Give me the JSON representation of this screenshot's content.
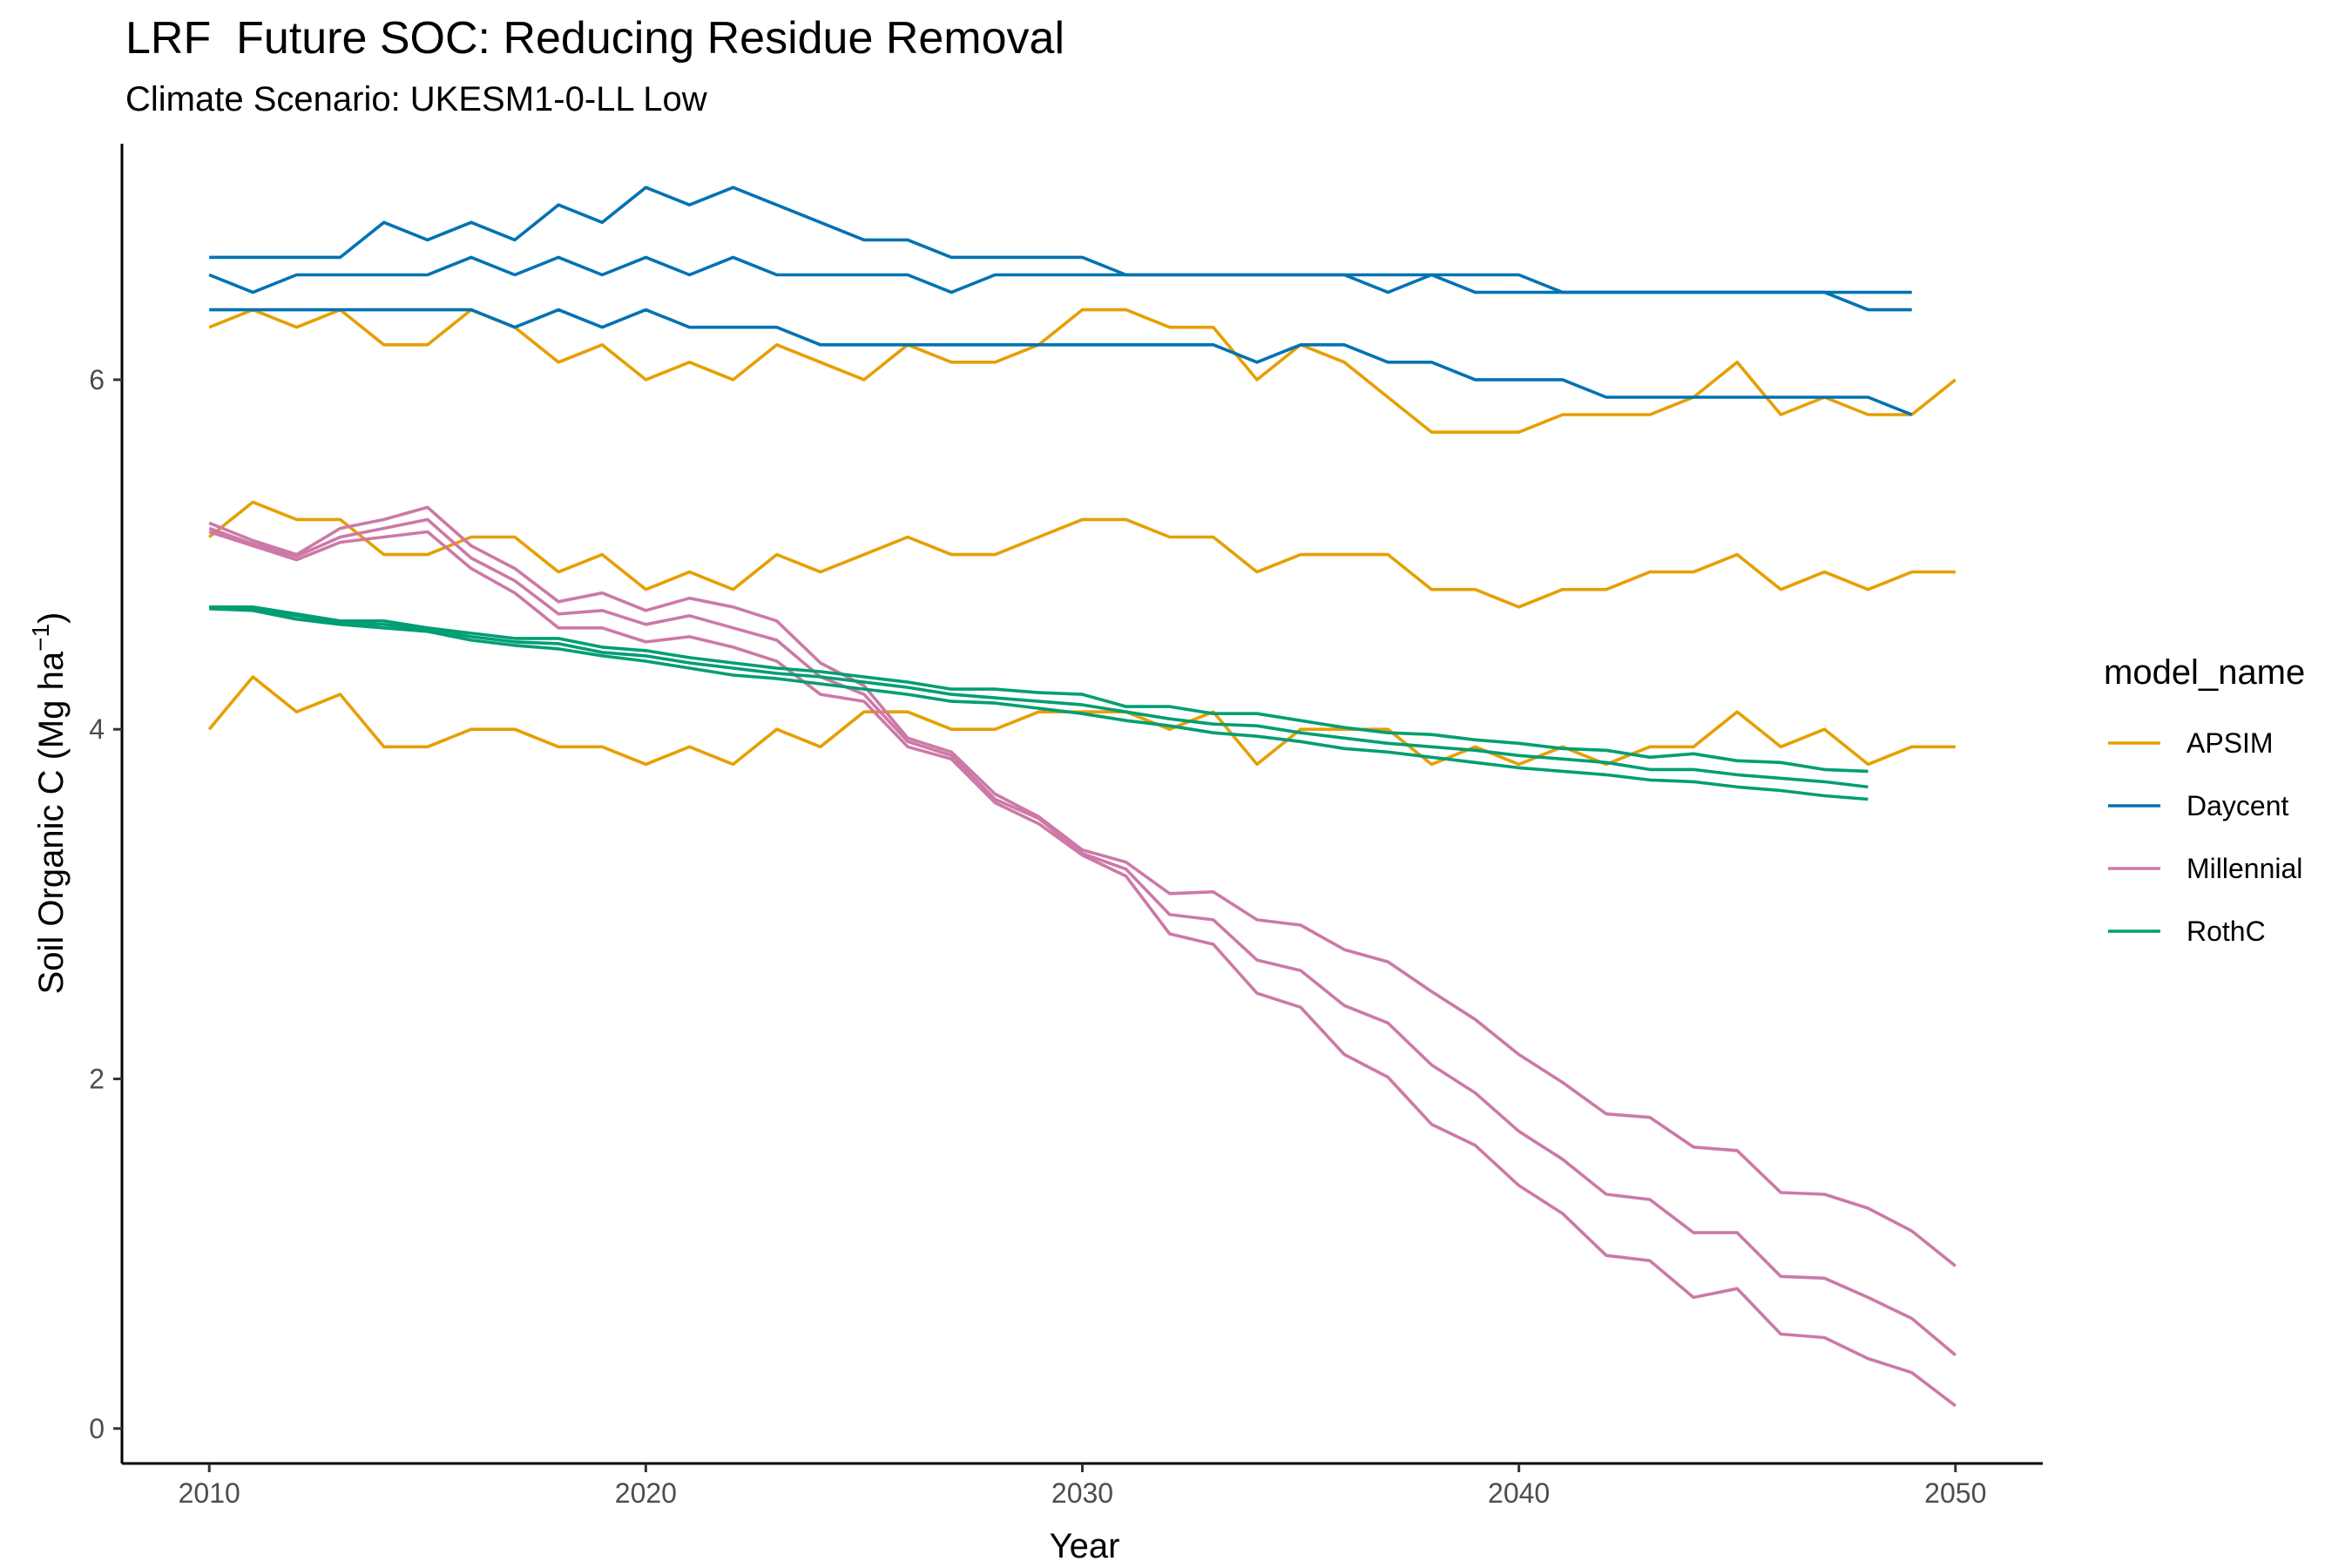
{
  "header": {
    "title": "LRF  Future SOC: Reducing Residue Removal",
    "subtitle": "Climate Scenario: UKESM1-0-LL Low"
  },
  "chart_data": {
    "type": "line",
    "title": "LRF  Future SOC: Reducing Residue Removal",
    "subtitle": "Climate Scenario: UKESM1-0-LL Low",
    "xlabel": "Year",
    "ylabel": "Soil Organic C (Mg ha⁻¹)",
    "ylabel_parts": {
      "main": "Soil Organic C (Mg ha",
      "sup": "−1",
      "close": ")"
    },
    "xlim": [
      2008,
      2052
    ],
    "ylim": [
      -0.2,
      7.35
    ],
    "x_ticks": [
      2010,
      2020,
      2030,
      2040,
      2050
    ],
    "y_ticks": [
      0,
      2,
      4,
      6
    ],
    "grid": false,
    "legend": {
      "title": "model_name",
      "position": "right",
      "entries": [
        {
          "name": "APSIM",
          "color": "#E69F00"
        },
        {
          "name": "Daycent",
          "color": "#0072B2"
        },
        {
          "name": "Millennial",
          "color": "#CC79A7"
        },
        {
          "name": "RothC",
          "color": "#009E73"
        }
      ]
    },
    "x_start": 2010,
    "series": [
      {
        "model": "APSIM",
        "color": "#E69F00",
        "values": [
          6.3,
          6.4,
          6.3,
          6.4,
          6.2,
          6.2,
          6.4,
          6.3,
          6.1,
          6.2,
          6.0,
          6.1,
          6.0,
          6.2,
          6.1,
          6.0,
          6.2,
          6.1,
          6.1,
          6.2,
          6.4,
          6.4,
          6.3,
          6.3,
          6.0,
          6.2,
          6.1,
          5.9,
          5.7,
          5.7,
          5.7,
          5.8,
          5.8,
          5.8,
          5.9,
          6.1,
          5.8,
          5.9,
          5.8,
          5.8,
          6.0
        ]
      },
      {
        "model": "APSIM",
        "color": "#E69F00",
        "values": [
          5.1,
          5.3,
          5.2,
          5.2,
          5.0,
          5.0,
          5.1,
          5.1,
          4.9,
          5.0,
          4.8,
          4.9,
          4.8,
          5.0,
          4.9,
          5.0,
          5.1,
          5.0,
          5.0,
          5.1,
          5.2,
          5.2,
          5.1,
          5.1,
          4.9,
          5.0,
          5.0,
          5.0,
          4.8,
          4.8,
          4.7,
          4.8,
          4.8,
          4.9,
          4.9,
          5.0,
          4.8,
          4.9,
          4.8,
          4.9,
          4.9
        ]
      },
      {
        "model": "APSIM",
        "color": "#E69F00",
        "values": [
          4.0,
          4.3,
          4.1,
          4.2,
          3.9,
          3.9,
          4.0,
          4.0,
          3.9,
          3.9,
          3.8,
          3.9,
          3.8,
          4.0,
          3.9,
          4.1,
          4.1,
          4.0,
          4.0,
          4.1,
          4.1,
          4.1,
          4.0,
          4.1,
          3.8,
          4.0,
          4.0,
          4.0,
          3.8,
          3.9,
          3.8,
          3.9,
          3.8,
          3.9,
          3.9,
          4.1,
          3.9,
          4.0,
          3.8,
          3.9,
          3.9
        ]
      },
      {
        "model": "Daycent",
        "color": "#0072B2",
        "values": [
          6.7,
          6.7,
          6.7,
          6.7,
          6.9,
          6.8,
          6.9,
          6.8,
          7.0,
          6.9,
          7.1,
          7.0,
          7.1,
          7.0,
          6.9,
          6.8,
          6.8,
          6.7,
          6.7,
          6.7,
          6.7,
          6.6,
          6.6,
          6.6,
          6.6,
          6.6,
          6.6,
          6.5,
          6.6,
          6.5,
          6.5,
          6.5,
          6.5,
          6.5,
          6.5,
          6.5,
          6.5,
          6.5,
          6.5,
          6.5
        ]
      },
      {
        "model": "Daycent",
        "color": "#0072B2",
        "values": [
          6.6,
          6.5,
          6.6,
          6.6,
          6.6,
          6.6,
          6.7,
          6.6,
          6.7,
          6.6,
          6.7,
          6.6,
          6.7,
          6.6,
          6.6,
          6.6,
          6.6,
          6.5,
          6.6,
          6.6,
          6.6,
          6.6,
          6.6,
          6.6,
          6.6,
          6.6,
          6.6,
          6.6,
          6.6,
          6.6,
          6.6,
          6.5,
          6.5,
          6.5,
          6.5,
          6.5,
          6.5,
          6.5,
          6.4,
          6.4
        ]
      },
      {
        "model": "Daycent",
        "color": "#0072B2",
        "values": [
          6.4,
          6.4,
          6.4,
          6.4,
          6.4,
          6.4,
          6.4,
          6.3,
          6.4,
          6.3,
          6.4,
          6.3,
          6.3,
          6.3,
          6.2,
          6.2,
          6.2,
          6.2,
          6.2,
          6.2,
          6.2,
          6.2,
          6.2,
          6.2,
          6.1,
          6.2,
          6.2,
          6.1,
          6.1,
          6.0,
          6.0,
          6.0,
          5.9,
          5.9,
          5.9,
          5.9,
          5.9,
          5.9,
          5.9,
          5.8
        ]
      },
      {
        "model": "Millennial",
        "color": "#CC79A7",
        "values": [
          5.18,
          5.08,
          5.0,
          5.15,
          5.2,
          5.27,
          5.05,
          4.92,
          4.73,
          4.78,
          4.68,
          4.75,
          4.7,
          4.62,
          4.38,
          4.25,
          3.95,
          3.87,
          3.63,
          3.5,
          3.31,
          3.24,
          3.06,
          3.07,
          2.91,
          2.88,
          2.74,
          2.67,
          2.5,
          2.34,
          2.14,
          1.98,
          1.8,
          1.78,
          1.61,
          1.59,
          1.35,
          1.34,
          1.26,
          1.13,
          0.93
        ]
      },
      {
        "model": "Millennial",
        "color": "#CC79A7",
        "values": [
          5.15,
          5.06,
          4.99,
          5.1,
          5.15,
          5.2,
          4.98,
          4.85,
          4.66,
          4.68,
          4.6,
          4.65,
          4.58,
          4.51,
          4.3,
          4.2,
          3.93,
          3.85,
          3.6,
          3.49,
          3.29,
          3.2,
          2.94,
          2.91,
          2.68,
          2.62,
          2.42,
          2.32,
          2.08,
          1.92,
          1.7,
          1.54,
          1.34,
          1.31,
          1.12,
          1.12,
          0.87,
          0.86,
          0.75,
          0.63,
          0.42
        ]
      },
      {
        "model": "Millennial",
        "color": "#CC79A7",
        "values": [
          5.13,
          5.05,
          4.97,
          5.07,
          5.1,
          5.13,
          4.92,
          4.78,
          4.58,
          4.58,
          4.5,
          4.53,
          4.47,
          4.39,
          4.2,
          4.16,
          3.9,
          3.83,
          3.58,
          3.46,
          3.28,
          3.16,
          2.83,
          2.77,
          2.49,
          2.41,
          2.14,
          2.01,
          1.74,
          1.62,
          1.39,
          1.23,
          0.99,
          0.96,
          0.75,
          0.8,
          0.54,
          0.52,
          0.4,
          0.32,
          0.13
        ]
      },
      {
        "model": "RothC",
        "color": "#009E73",
        "values": [
          4.7,
          4.7,
          4.66,
          4.62,
          4.62,
          4.58,
          4.55,
          4.52,
          4.52,
          4.47,
          4.45,
          4.41,
          4.38,
          4.35,
          4.33,
          4.3,
          4.27,
          4.23,
          4.23,
          4.21,
          4.2,
          4.13,
          4.13,
          4.09,
          4.09,
          4.05,
          4.01,
          3.98,
          3.97,
          3.94,
          3.92,
          3.89,
          3.88,
          3.84,
          3.86,
          3.82,
          3.81,
          3.77,
          3.76
        ]
      },
      {
        "model": "RothC",
        "color": "#009E73",
        "values": [
          4.7,
          4.69,
          4.65,
          4.61,
          4.6,
          4.57,
          4.53,
          4.5,
          4.49,
          4.44,
          4.42,
          4.38,
          4.35,
          4.32,
          4.3,
          4.27,
          4.24,
          4.2,
          4.18,
          4.16,
          4.14,
          4.1,
          4.06,
          4.03,
          4.02,
          3.98,
          3.95,
          3.92,
          3.9,
          3.88,
          3.85,
          3.83,
          3.81,
          3.77,
          3.77,
          3.74,
          3.72,
          3.7,
          3.67
        ]
      },
      {
        "model": "RothC",
        "color": "#009E73",
        "values": [
          4.69,
          4.68,
          4.63,
          4.6,
          4.58,
          4.56,
          4.51,
          4.48,
          4.46,
          4.42,
          4.39,
          4.35,
          4.31,
          4.29,
          4.26,
          4.23,
          4.2,
          4.16,
          4.15,
          4.12,
          4.09,
          4.05,
          4.02,
          3.98,
          3.96,
          3.93,
          3.89,
          3.87,
          3.84,
          3.81,
          3.78,
          3.76,
          3.74,
          3.71,
          3.7,
          3.67,
          3.65,
          3.62,
          3.6
        ]
      }
    ]
  }
}
